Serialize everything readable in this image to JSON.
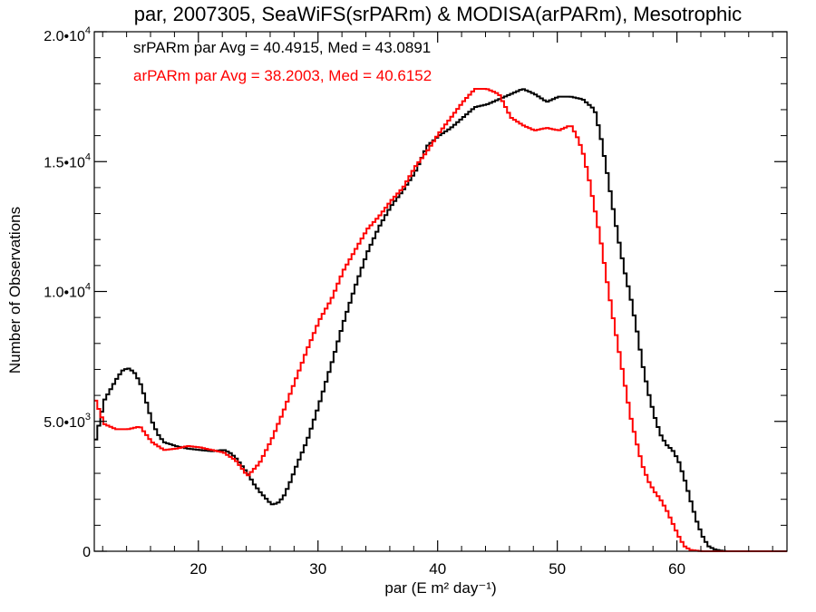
{
  "chart_data": {
    "type": "line",
    "title": "par, 2007305, SeaWiFS(srPARm) & MODISA(arPARm), Mesotrophic",
    "xlabel": "par (E m² day⁻¹)",
    "ylabel": "Number of Observations",
    "xlim": [
      11.3,
      69.2
    ],
    "ylim": [
      0,
      20000
    ],
    "xticks": [
      {
        "value": 20,
        "label": "20"
      },
      {
        "value": 30,
        "label": "30"
      },
      {
        "value": 40,
        "label": "40"
      },
      {
        "value": 50,
        "label": "50"
      },
      {
        "value": 60,
        "label": "60"
      }
    ],
    "yticks": [
      {
        "value": 0,
        "label": "0"
      },
      {
        "value": 5000,
        "label": "5.0•10",
        "exp": "3"
      },
      {
        "value": 10000,
        "label": "1.0•10",
        "exp": "4"
      },
      {
        "value": 15000,
        "label": "1.5•10",
        "exp": "4"
      },
      {
        "value": 20000,
        "label": "2.0•10",
        "exp": "4"
      }
    ],
    "grid": false,
    "step": true,
    "annotations": [
      {
        "text": "srPARm par Avg = 40.4915, Med = 43.0891",
        "color": "#000000"
      },
      {
        "text": "arPARm par Avg = 38.2003, Med = 40.6152",
        "color": "#ff0000"
      }
    ],
    "series": [
      {
        "name": "srPARm",
        "color": "#000000",
        "x": [
          11.3,
          12,
          13,
          13.5,
          14,
          14.5,
          15,
          15.5,
          16,
          16.5,
          17,
          18,
          19,
          20,
          21,
          22,
          22.5,
          23,
          23.5,
          24,
          24.5,
          25,
          25.5,
          26,
          26.5,
          27,
          27.5,
          28,
          29,
          30,
          31,
          32,
          33,
          34,
          35,
          36,
          37,
          38,
          39,
          40,
          41,
          42,
          43,
          44,
          45,
          46,
          47,
          48,
          49,
          50,
          51,
          52,
          53,
          53.5,
          54,
          54.5,
          55,
          55.5,
          56,
          56.5,
          57,
          57.5,
          58,
          58.5,
          59,
          59.5,
          60,
          60.5,
          61,
          61.5,
          62,
          62.5,
          63,
          63.5,
          64,
          65,
          66,
          67,
          68,
          69.2
        ],
        "y": [
          4300,
          5800,
          6600,
          6950,
          7050,
          6900,
          6500,
          5800,
          5000,
          4500,
          4200,
          4050,
          3950,
          3900,
          3850,
          3900,
          3800,
          3600,
          3300,
          3000,
          2600,
          2300,
          2050,
          1800,
          1850,
          2100,
          2600,
          3200,
          4300,
          5700,
          7200,
          8800,
          10200,
          11500,
          12500,
          13300,
          13900,
          14600,
          15600,
          16000,
          16300,
          16700,
          17100,
          17200,
          17400,
          17600,
          17800,
          17600,
          17300,
          17500,
          17500,
          17400,
          17000,
          16000,
          14700,
          13300,
          12000,
          10800,
          9800,
          8600,
          7200,
          6100,
          5200,
          4500,
          4100,
          3900,
          3500,
          2800,
          2000,
          1200,
          600,
          200,
          80,
          30,
          0,
          0,
          0,
          0,
          0,
          0
        ]
      },
      {
        "name": "arPARm",
        "color": "#ff0000",
        "x": [
          11.3,
          12,
          13,
          14,
          15,
          16,
          17,
          18,
          19,
          20,
          21,
          22,
          23,
          24,
          25,
          26,
          27,
          28,
          29,
          30,
          31,
          32,
          33,
          34,
          35,
          36,
          37,
          38,
          39,
          40,
          41,
          42,
          43,
          44,
          45,
          46,
          47,
          48,
          49,
          50,
          51,
          51.5,
          52,
          52.5,
          53,
          53.5,
          54,
          54.5,
          55,
          55.5,
          56,
          56.5,
          57,
          57.5,
          58,
          58.5,
          59,
          59.5,
          60,
          60.5,
          61,
          62,
          63,
          64,
          65,
          66,
          67,
          68,
          69.2
        ],
        "y": [
          5800,
          4900,
          4700,
          4700,
          4800,
          4200,
          3900,
          3950,
          4050,
          4000,
          3900,
          3800,
          3500,
          2900,
          3400,
          4300,
          5400,
          6600,
          7800,
          8900,
          9700,
          10800,
          11600,
          12400,
          12900,
          13500,
          14000,
          14800,
          15400,
          16100,
          16700,
          17300,
          17800,
          17800,
          17600,
          16700,
          16400,
          16200,
          16300,
          16200,
          16400,
          16000,
          15400,
          14400,
          13200,
          12000,
          10500,
          9100,
          7800,
          6500,
          5200,
          4200,
          3300,
          2700,
          2300,
          2000,
          1600,
          1100,
          600,
          200,
          50,
          0,
          0,
          0,
          0,
          0,
          0,
          0,
          0
        ]
      }
    ]
  }
}
